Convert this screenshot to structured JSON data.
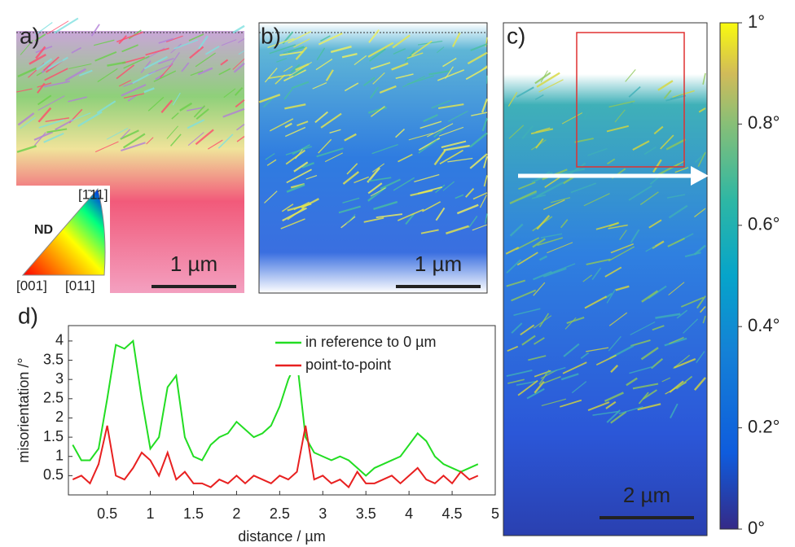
{
  "panels": [
    {
      "label": "a)",
      "scale_bar": "1 µm"
    },
    {
      "label": "b)",
      "scale_bar": "1 µm"
    },
    {
      "label": "c)",
      "scale_bar": "2 µm"
    }
  ],
  "ipf_legend": {
    "title": "ND",
    "corners": [
      "[1̄11]",
      "[001]",
      "[011]"
    ]
  },
  "colorbar": {
    "lim": [
      0,
      1
    ],
    "ticks": [
      {
        "value": 1,
        "label": "1°"
      },
      {
        "value": 0.8,
        "label": "0.8°"
      },
      {
        "value": 0.6,
        "label": "0.6°"
      },
      {
        "value": 0.4,
        "label": "0.4°"
      },
      {
        "value": 0.2,
        "label": "0.2°"
      },
      {
        "value": 0,
        "label": "0°"
      }
    ]
  },
  "chart_data": {
    "type": "line",
    "panel_label": "d)",
    "x_label": "distance / µm",
    "y_label": "misorientation /°",
    "x": [
      0.1,
      0.2,
      0.3,
      0.4,
      0.5,
      0.6,
      0.7,
      0.8,
      0.9,
      1.0,
      1.1,
      1.2,
      1.3,
      1.4,
      1.5,
      1.6,
      1.7,
      1.8,
      1.9,
      2.0,
      2.1,
      2.2,
      2.3,
      2.4,
      2.5,
      2.6,
      2.7,
      2.8,
      2.9,
      3.0,
      3.1,
      3.2,
      3.3,
      3.4,
      3.5,
      3.6,
      3.7,
      3.8,
      3.9,
      4.0,
      4.1,
      4.2,
      4.3,
      4.4,
      4.5,
      4.6,
      4.7,
      4.8
    ],
    "series": [
      {
        "name": "in reference to 0 µm",
        "color": "#22dd22",
        "values": [
          1.3,
          0.9,
          0.9,
          1.2,
          2.5,
          3.9,
          3.8,
          4.0,
          2.5,
          1.2,
          1.5,
          2.8,
          3.1,
          1.5,
          1.0,
          0.9,
          1.3,
          1.5,
          1.6,
          1.9,
          1.7,
          1.5,
          1.6,
          1.8,
          2.3,
          3.0,
          3.5,
          1.5,
          1.1,
          1.0,
          0.9,
          1.0,
          0.9,
          0.7,
          0.5,
          0.7,
          0.8,
          0.9,
          1.0,
          1.3,
          1.6,
          1.4,
          1.0,
          0.8,
          0.7,
          0.6,
          0.7,
          0.8
        ]
      },
      {
        "name": "point-to-point",
        "color": "#e82020",
        "values": [
          0.4,
          0.5,
          0.3,
          0.8,
          1.8,
          0.5,
          0.4,
          0.7,
          1.1,
          0.9,
          0.5,
          1.1,
          0.4,
          0.6,
          0.3,
          0.3,
          0.2,
          0.4,
          0.3,
          0.5,
          0.3,
          0.5,
          0.4,
          0.3,
          0.5,
          0.4,
          0.6,
          1.8,
          0.4,
          0.5,
          0.3,
          0.4,
          0.2,
          0.6,
          0.3,
          0.3,
          0.4,
          0.5,
          0.3,
          0.5,
          0.7,
          0.4,
          0.3,
          0.5,
          0.3,
          0.6,
          0.4,
          0.5
        ]
      }
    ],
    "xlim": [
      0.05,
      5
    ],
    "ylim": [
      0,
      4.4
    ],
    "xticks": [
      0.5,
      1,
      1.5,
      2,
      2.5,
      3,
      3.5,
      4,
      4.5,
      5
    ],
    "yticks": [
      0.5,
      1,
      1.5,
      2,
      2.5,
      3,
      3.5,
      4
    ]
  }
}
